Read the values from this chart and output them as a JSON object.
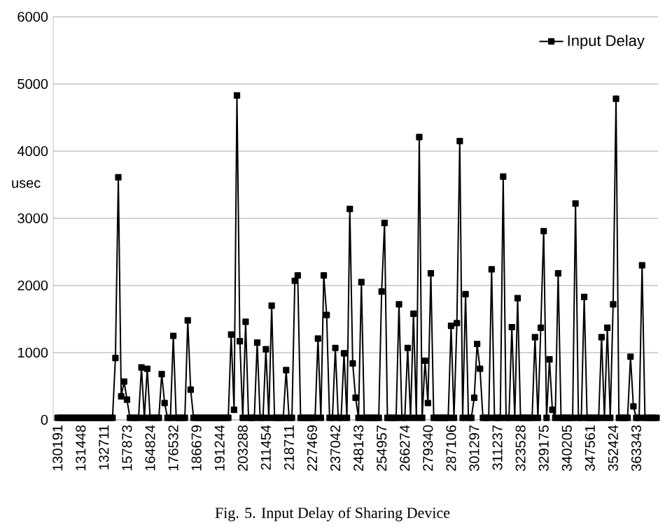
{
  "chart_data": {
    "type": "line",
    "ylabel": "usec",
    "annotations": [
      "Fig. 5. Input Delay of Sharing Device"
    ],
    "categories": [
      "130191",
      null,
      null,
      null,
      null,
      null,
      null,
      null,
      "131448",
      null,
      null,
      null,
      null,
      null,
      null,
      null,
      "132711",
      null,
      null,
      null,
      null,
      null,
      null,
      null,
      "157873",
      null,
      null,
      null,
      null,
      null,
      null,
      null,
      "164824",
      null,
      null,
      null,
      null,
      null,
      null,
      null,
      "176532",
      null,
      null,
      null,
      null,
      null,
      null,
      null,
      "186679",
      null,
      null,
      null,
      null,
      null,
      null,
      null,
      "191244",
      null,
      null,
      null,
      null,
      null,
      null,
      null,
      "203288",
      null,
      null,
      null,
      null,
      null,
      null,
      null,
      "211454",
      null,
      null,
      null,
      null,
      null,
      null,
      null,
      "218711",
      null,
      null,
      null,
      null,
      null,
      null,
      null,
      "227469",
      null,
      null,
      null,
      null,
      null,
      null,
      null,
      "237042",
      null,
      null,
      null,
      null,
      null,
      null,
      null,
      "248143",
      null,
      null,
      null,
      null,
      null,
      null,
      null,
      "254957",
      null,
      null,
      null,
      null,
      null,
      null,
      null,
      "266274",
      null,
      null,
      null,
      null,
      null,
      null,
      null,
      "279340",
      null,
      null,
      null,
      null,
      null,
      null,
      null,
      "287106",
      null,
      null,
      null,
      null,
      null,
      null,
      null,
      "301297",
      null,
      null,
      null,
      null,
      null,
      null,
      null,
      "311237",
      null,
      null,
      null,
      null,
      null,
      null,
      null,
      "323528",
      null,
      null,
      null,
      null,
      null,
      null,
      null,
      "329175",
      null,
      null,
      null,
      null,
      null,
      null,
      null,
      "340205",
      null,
      null,
      null,
      null,
      null,
      null,
      null,
      "347561",
      null,
      null,
      null,
      null,
      null,
      null,
      null,
      "352424",
      null,
      null,
      null,
      null,
      null,
      null,
      null,
      "363343",
      null,
      null,
      null,
      null,
      null,
      null,
      null
    ],
    "series": [
      {
        "name": "Input Delay",
        "color": "#000000",
        "values": [
          30,
          30,
          30,
          30,
          30,
          30,
          30,
          30,
          30,
          30,
          30,
          30,
          30,
          30,
          30,
          30,
          30,
          30,
          30,
          30,
          920,
          3610,
          350,
          570,
          300,
          30,
          30,
          30,
          30,
          780,
          30,
          760,
          30,
          30,
          30,
          30,
          680,
          250,
          30,
          30,
          1250,
          30,
          30,
          30,
          30,
          1480,
          450,
          30,
          30,
          30,
          30,
          30,
          30,
          30,
          30,
          30,
          30,
          30,
          30,
          30,
          1270,
          150,
          4830,
          1170,
          30,
          1460,
          30,
          30,
          30,
          1150,
          30,
          30,
          1050,
          30,
          1700,
          30,
          30,
          30,
          30,
          740,
          30,
          30,
          2070,
          2150,
          30,
          30,
          30,
          30,
          30,
          30,
          1210,
          30,
          2150,
          1560,
          30,
          30,
          1070,
          30,
          30,
          990,
          30,
          3140,
          840,
          330,
          30,
          2050,
          30,
          30,
          30,
          30,
          30,
          30,
          1910,
          2930,
          30,
          30,
          30,
          30,
          1720,
          30,
          30,
          1070,
          30,
          1580,
          30,
          4210,
          30,
          880,
          250,
          2180,
          30,
          30,
          30,
          30,
          30,
          30,
          1400,
          30,
          1440,
          4150,
          30,
          1870,
          30,
          30,
          330,
          1130,
          760,
          30,
          30,
          30,
          2240,
          30,
          30,
          30,
          3620,
          30,
          30,
          1380,
          30,
          1810,
          30,
          30,
          30,
          30,
          30,
          1230,
          30,
          1370,
          2810,
          30,
          900,
          150,
          30,
          2180,
          30,
          30,
          30,
          30,
          30,
          3220,
          30,
          30,
          1830,
          30,
          30,
          30,
          30,
          30,
          1230,
          30,
          1370,
          30,
          1720,
          4780,
          30,
          30,
          30,
          30,
          940,
          200,
          30,
          30,
          2300,
          30,
          30,
          30,
          30,
          30
        ]
      }
    ],
    "ylim": [
      0,
      6000
    ],
    "yticks": [
      0,
      1000,
      2000,
      3000,
      4000,
      5000,
      6000
    ],
    "grid": "y",
    "legend": "top right",
    "marker": "square",
    "line_style": "solid"
  }
}
